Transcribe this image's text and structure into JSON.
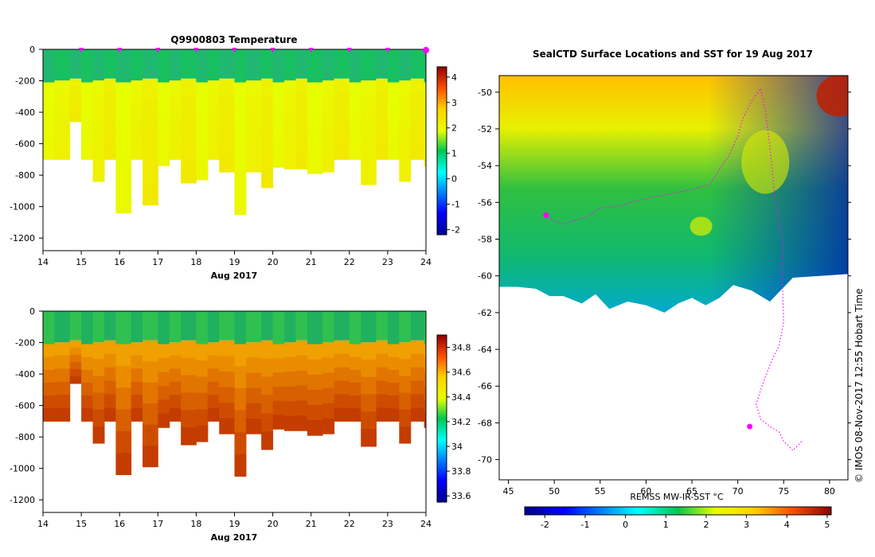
{
  "colors": {
    "background": "#ffffff",
    "track": "#ff00ff",
    "land": "#ffffff"
  },
  "chart_data": [
    {
      "type": "heatmap",
      "name": "temperature-section",
      "title": "Q9900803  Temperature",
      "xlabel": "Aug 2017",
      "ylabel": "",
      "xlim": [
        14,
        24
      ],
      "ylim": [
        -1280,
        0
      ],
      "xticks": [
        "14",
        "15",
        "16",
        "17",
        "18",
        "19",
        "20",
        "21",
        "22",
        "23",
        "24"
      ],
      "yticks": [
        "0",
        "-200",
        "-400",
        "-600",
        "-800",
        "-1000",
        "-1200"
      ],
      "colorbar": {
        "min": -2.2,
        "max": 4.4,
        "ticks": [
          "4",
          "3",
          "2",
          "1",
          "0",
          "-1",
          "-2"
        ]
      },
      "profile_times": [
        14.0,
        14.3,
        14.7,
        15.0,
        15.3,
        15.6,
        15.9,
        16.3,
        16.6,
        17.0,
        17.3,
        17.6,
        18.0,
        18.3,
        18.6,
        19.0,
        19.3,
        19.7,
        20.0,
        20.3,
        20.6,
        20.9,
        21.3,
        21.6,
        22.0,
        22.3,
        22.7,
        23.0,
        23.3,
        23.6,
        23.95
      ],
      "profile_max_depths": [
        -700,
        -700,
        -460,
        -700,
        -840,
        -700,
        -1040,
        -700,
        -990,
        -740,
        -700,
        -850,
        -830,
        -700,
        -780,
        -1050,
        -780,
        -880,
        -750,
        -760,
        -760,
        -790,
        -780,
        -700,
        -700,
        -860,
        -700,
        -700,
        -840,
        -700,
        -740
      ],
      "surface_layer": {
        "depth_top": 0,
        "depth_bottom": -200,
        "value": 0.6
      },
      "deep_value": 2.4,
      "marker_times": [
        15,
        16,
        17,
        18,
        19,
        20,
        21,
        22,
        23,
        24
      ]
    },
    {
      "type": "heatmap",
      "name": "salinity-section",
      "title": "",
      "xlabel": "Aug 2017",
      "ylabel": "",
      "xlim": [
        14,
        24
      ],
      "ylim": [
        -1280,
        0
      ],
      "xticks": [
        "14",
        "15",
        "16",
        "17",
        "18",
        "19",
        "20",
        "21",
        "22",
        "23",
        "24"
      ],
      "yticks": [
        "0",
        "-200",
        "-400",
        "-600",
        "-800",
        "-1000",
        "-1200"
      ],
      "colorbar": {
        "min": 33.55,
        "max": 34.9,
        "ticks": [
          "34.8",
          "34.6",
          "34.4",
          "34.2",
          "34",
          "33.8",
          "33.6"
        ]
      },
      "surface_value": 34.1,
      "deep_value": 34.75
    },
    {
      "type": "heatmap",
      "name": "sst-map",
      "title": "SealCTD Surface Locations and SST for 19 Aug 2017",
      "xlabel": "REMSS MW-IR-SST °C",
      "ylabel": "",
      "xlim": [
        44,
        82
      ],
      "ylim": [
        -71.1,
        -49.1
      ],
      "xticks": [
        "45",
        "50",
        "55",
        "60",
        "65",
        "70",
        "75",
        "80"
      ],
      "yticks": [
        "-50",
        "-52",
        "-54",
        "-56",
        "-58",
        "-60",
        "-62",
        "-64",
        "-66",
        "-68",
        "-70"
      ],
      "colorbar": {
        "min": -2.5,
        "max": 5.1,
        "ticks": [
          "-2",
          "-1",
          "0",
          "1",
          "2",
          "3",
          "4",
          "5"
        ]
      },
      "ice_edge_lat": [
        -60.6,
        -60.6,
        -60.7,
        -61.1,
        -61.1,
        -61.5,
        -61.0,
        -61.8,
        -61.4,
        -61.6,
        -62.0,
        -61.5,
        -61.2,
        -61.6,
        -61.2,
        -60.5,
        -60.8,
        -61.4,
        -60.1,
        -60.0,
        -59.9
      ],
      "ice_edge_lon": [
        44.0,
        46.0,
        48.0,
        49.5,
        51.0,
        53.0,
        54.5,
        56.0,
        58.0,
        60.0,
        62.0,
        63.5,
        65.0,
        66.5,
        68.0,
        69.5,
        71.5,
        73.5,
        76.0,
        79.0,
        82.0
      ],
      "track_lon": [
        49.0,
        50.0,
        51.0,
        52.0,
        53.5,
        55.0,
        57.0,
        59.0,
        61.0,
        63.0,
        65.0,
        67.0,
        68.0,
        69.0,
        70.0,
        70.5,
        71.5,
        72.5,
        73.0,
        73.5,
        74.0,
        74.5,
        75.0,
        74.8,
        74.9,
        75.0,
        74.5,
        73.8,
        73.0,
        72.5,
        72.0,
        72.5,
        73.5,
        74.5,
        75.0,
        76.0,
        77.0
      ],
      "track_lat": [
        -56.7,
        -57.0,
        -57.2,
        -57.0,
        -56.8,
        -56.3,
        -56.2,
        -55.9,
        -55.7,
        -55.5,
        -55.3,
        -55.0,
        -54.2,
        -53.5,
        -52.4,
        -51.5,
        -50.5,
        -49.8,
        -51.0,
        -53.0,
        -55.5,
        -57.0,
        -58.5,
        -59.5,
        -61.0,
        -62.5,
        -63.8,
        -64.5,
        -65.5,
        -66.2,
        -67.0,
        -67.8,
        -68.2,
        -68.5,
        -69.0,
        -69.5,
        -69.0
      ],
      "markers": [
        {
          "lon": 71.3,
          "lat": -68.2
        },
        {
          "lon": 49.1,
          "lat": -56.7
        }
      ]
    }
  ],
  "credit": "©  IMOS 08-Nov-2017 12:55 Hobart Time"
}
